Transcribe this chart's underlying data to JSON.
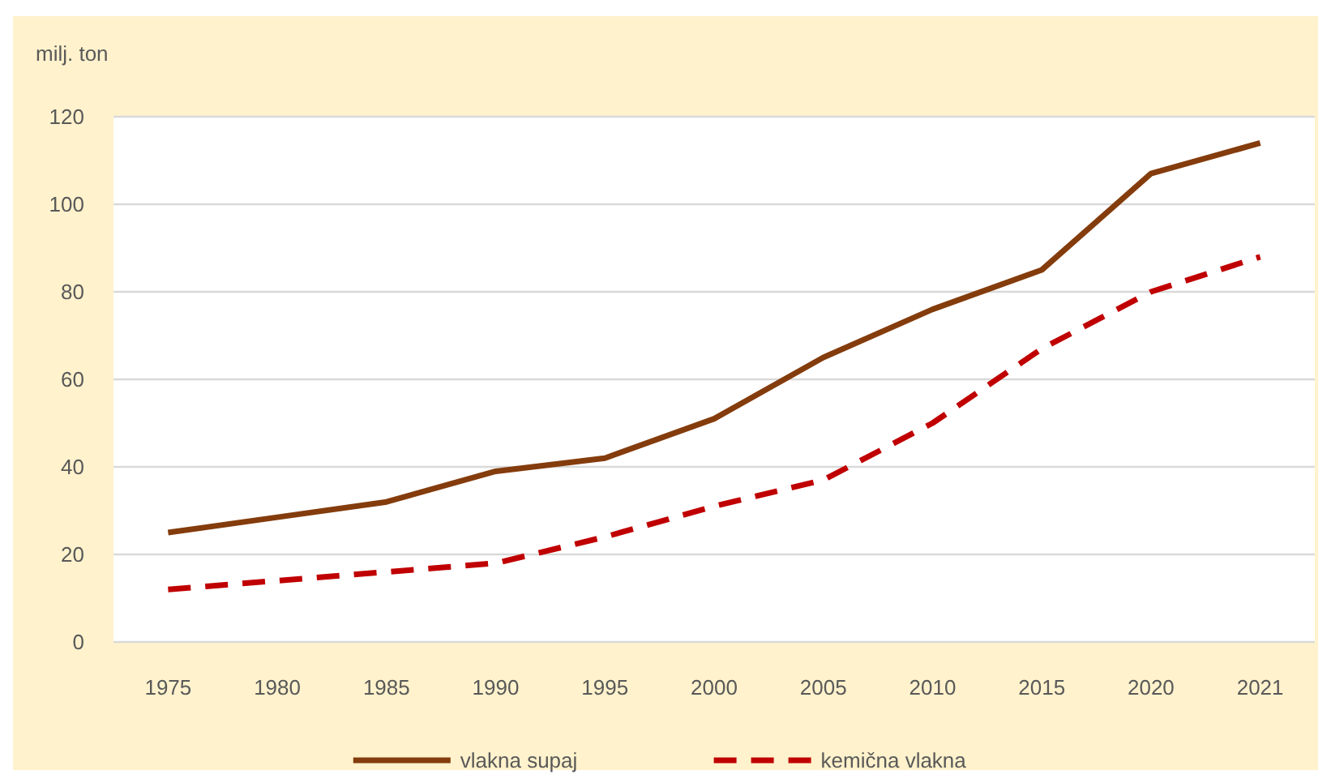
{
  "chart_data": {
    "type": "line",
    "ylabel": "milj. ton",
    "categories": [
      "1975",
      "1980",
      "1985",
      "1990",
      "1995",
      "2000",
      "2005",
      "2010",
      "2015",
      "2020",
      "2021"
    ],
    "series": [
      {
        "name": "vlakna supaj",
        "color": "#843c0c",
        "line_style": "solid",
        "values": [
          25,
          28.5,
          32,
          39,
          42,
          51,
          65,
          76,
          85,
          107,
          114
        ]
      },
      {
        "name": "kemična vlakna",
        "color": "#c00000",
        "line_style": "dashed",
        "values": [
          12,
          14,
          16,
          18,
          24,
          31,
          37,
          50,
          67,
          80,
          88
        ]
      }
    ],
    "ylim": [
      0,
      120
    ],
    "yticks": [
      0,
      20,
      40,
      60,
      80,
      100,
      120
    ],
    "grid": "y",
    "legend": "bottom",
    "marker": "none"
  }
}
